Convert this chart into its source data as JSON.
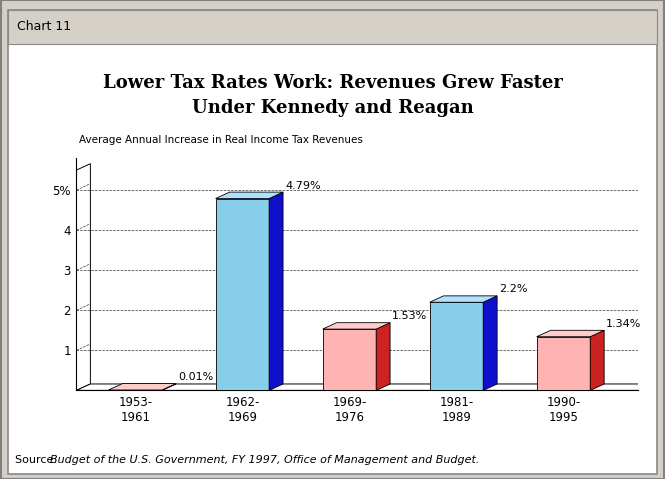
{
  "title_line1": "Lower Tax Rates Work: Revenues Grew Faster",
  "title_line2": "Under Kennedy and Reagan",
  "subtitle": "Average Annual Increase in Real Income Tax Revenues",
  "categories": [
    "1953-\n1961",
    "1962-\n1969",
    "1969-\n1976",
    "1981-\n1989",
    "1990-\n1995"
  ],
  "values": [
    0.01,
    4.79,
    1.53,
    2.2,
    1.34
  ],
  "bar_face_colors": [
    "#FF9999",
    "#87CEEB",
    "#FFB3B3",
    "#87CEEB",
    "#FFB3B3"
  ],
  "bar_side_colors": [
    "#CC2222",
    "#1010CC",
    "#CC2222",
    "#1010CC",
    "#CC2222"
  ],
  "bar_top_colors": [
    "#FFCCCC",
    "#B0E0FF",
    "#FFCCCC",
    "#B0E0FF",
    "#FFCCCC"
  ],
  "value_labels": [
    "0.01%",
    "4.79%",
    "1.53%",
    "2.2%",
    "1.34%"
  ],
  "ylim": [
    0,
    5.8
  ],
  "yticks": [
    1,
    2,
    3,
    4,
    5
  ],
  "ytick_labels": [
    "1",
    "2",
    "3",
    "4",
    "5%"
  ],
  "source_normal": "Source:  ",
  "source_italic": "Budget of the U.S. Government, FY 1997, Office of Management and Budget.",
  "chart_label": "Chart 11",
  "bg_color": "#D4D0C8",
  "plot_bg_color": "#FFFFFF",
  "title_fontsize": 13,
  "subtitle_fontsize": 7.5,
  "tick_fontsize": 8.5,
  "source_fontsize": 8
}
